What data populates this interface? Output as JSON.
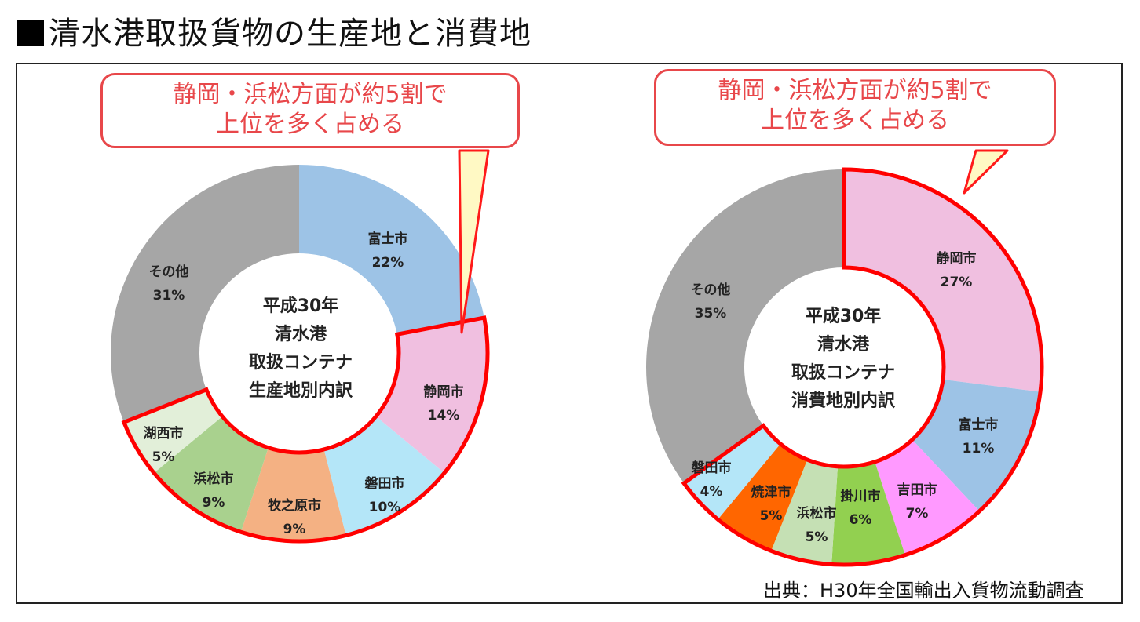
{
  "title": "清水港取扱貨物の生産地と消費地",
  "source": "出典：H30年全国輸出入貨物流動調査",
  "callouts": [
    {
      "line1": "静岡・浜松方面が約5割で",
      "line2": "上位を多く占める"
    },
    {
      "line1": "静岡・浜松方面が約5割で",
      "line2": "上位を多く占める"
    }
  ],
  "colors": {
    "highlight_border": "#ff0000",
    "callout_text": "#e8474a",
    "callout_tail_fill": "#fff9c4"
  },
  "chart_data": [
    {
      "type": "pie",
      "subtype": "donut",
      "title": "平成30年 清水港 取扱コンテナ 生産地別内訳",
      "center_lines": [
        "平成30年",
        "清水港",
        "取扱コンテナ",
        "生産地別内訳"
      ],
      "categories": [
        "富士市",
        "静岡市",
        "磐田市",
        "牧之原市",
        "浜松市",
        "湖西市",
        "その他"
      ],
      "values": [
        22,
        14,
        10,
        9,
        9,
        5,
        31
      ],
      "unit": "%",
      "colors": [
        "#9dc3e6",
        "#f0bfe0",
        "#b4e6f8",
        "#f4b183",
        "#a9d18e",
        "#e2efd9",
        "#a6a6a6"
      ],
      "highlighted": [
        "静岡市",
        "磐田市",
        "牧之原市",
        "浜松市",
        "湖西市"
      ],
      "annotation": "静岡・浜松方面が約5割で上位を多く占める"
    },
    {
      "type": "pie",
      "subtype": "donut",
      "title": "平成30年 清水港 取扱コンテナ 消費地別内訳",
      "center_lines": [
        "平成30年",
        "清水港",
        "取扱コンテナ",
        "消費地別内訳"
      ],
      "categories": [
        "静岡市",
        "富士市",
        "吉田市",
        "掛川市",
        "浜松市",
        "焼津市",
        "磐田市",
        "その他"
      ],
      "values": [
        27,
        11,
        7,
        6,
        5,
        5,
        4,
        35
      ],
      "unit": "%",
      "colors": [
        "#f0bfe0",
        "#9dc3e6",
        "#ff99ff",
        "#92d050",
        "#c5e0b4",
        "#ff6600",
        "#b4e6f8",
        "#a6a6a6"
      ],
      "highlighted": [
        "静岡市",
        "吉田市",
        "掛川市",
        "浜松市",
        "焼津市",
        "磐田市"
      ],
      "annotation": "静岡・浜松方面が約5割で上位を多く占める"
    }
  ]
}
